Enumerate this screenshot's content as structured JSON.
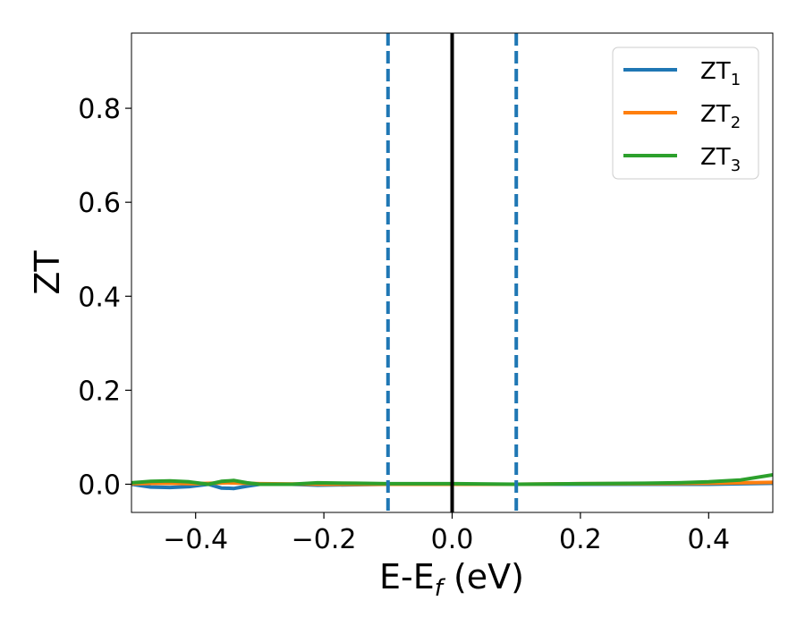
{
  "chart_data": {
    "type": "line",
    "xlabel": "E-E",
    "xlabel_subscript": "f",
    "xlabel_suffix": " (eV)",
    "ylabel": "ZT",
    "xlim": [
      -0.5,
      0.5
    ],
    "ylim": [
      -0.06,
      0.96
    ],
    "xticks": [
      {
        "value": -0.4,
        "label": "−0.4"
      },
      {
        "value": -0.2,
        "label": "−0.2"
      },
      {
        "value": 0.0,
        "label": "0.0"
      },
      {
        "value": 0.2,
        "label": "0.2"
      },
      {
        "value": 0.4,
        "label": "0.4"
      }
    ],
    "yticks": [
      {
        "value": 0.0,
        "label": "0.0"
      },
      {
        "value": 0.2,
        "label": "0.2"
      },
      {
        "value": 0.4,
        "label": "0.4"
      },
      {
        "value": 0.6,
        "label": "0.6"
      },
      {
        "value": 0.8,
        "label": "0.8"
      }
    ],
    "grid": false,
    "legend_position": "top-right",
    "series": [
      {
        "name": "ZT",
        "name_subscript": "1",
        "color": "#1f77b4",
        "x": [
          -0.5,
          -0.47,
          -0.44,
          -0.41,
          -0.38,
          -0.36,
          -0.34,
          -0.32,
          -0.3,
          -0.25,
          -0.21,
          -0.15,
          -0.1,
          -0.05,
          0.0,
          0.1,
          0.2,
          0.3,
          0.4,
          0.5
        ],
        "y": [
          0.0,
          -0.006,
          -0.007,
          -0.005,
          0.0,
          -0.008,
          -0.009,
          -0.004,
          0.0,
          0.0,
          -0.002,
          -0.001,
          0.0,
          0.0,
          0.0,
          0.0,
          0.0,
          0.0,
          0.0,
          0.002
        ]
      },
      {
        "name": "ZT",
        "name_subscript": "2",
        "color": "#ff7f0e",
        "x": [
          -0.5,
          -0.45,
          -0.4,
          -0.35,
          -0.3,
          -0.2,
          -0.1,
          0.0,
          0.1,
          0.2,
          0.3,
          0.4,
          0.5
        ],
        "y": [
          0.001,
          0.002,
          0.001,
          0.003,
          0.001,
          0.0,
          0.0,
          0.0,
          0.0,
          0.001,
          0.001,
          0.002,
          0.004
        ]
      },
      {
        "name": "ZT",
        "name_subscript": "3",
        "color": "#2ca02c",
        "x": [
          -0.5,
          -0.47,
          -0.44,
          -0.41,
          -0.38,
          -0.36,
          -0.34,
          -0.32,
          -0.3,
          -0.25,
          -0.21,
          -0.15,
          -0.1,
          -0.05,
          0.0,
          0.1,
          0.2,
          0.3,
          0.35,
          0.4,
          0.45,
          0.5
        ],
        "y": [
          0.003,
          0.006,
          0.007,
          0.005,
          0.0,
          0.006,
          0.008,
          0.003,
          0.0,
          0.0,
          0.003,
          0.002,
          0.001,
          0.001,
          0.001,
          0.0,
          0.001,
          0.002,
          0.003,
          0.005,
          0.009,
          0.02
        ]
      }
    ],
    "vlines": [
      {
        "x": -0.1,
        "style": "dashed",
        "color": "#1f77b4"
      },
      {
        "x": 0.0,
        "style": "solid",
        "color": "#000000"
      },
      {
        "x": 0.1,
        "style": "dashed",
        "color": "#1f77b4"
      }
    ]
  }
}
